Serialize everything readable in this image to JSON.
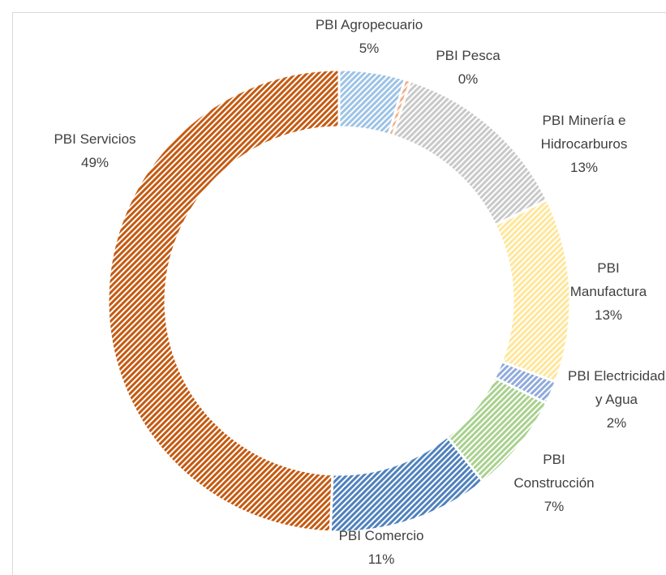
{
  "chart_data": {
    "type": "donut",
    "categories": [
      "PBI Agropecuario",
      "PBI Pesca",
      "PBI Minería e Hidrocarburos",
      "PBI Manufactura",
      "PBI Electricidad y Agua",
      "PBI Construcción",
      "PBI Comercio",
      "PBI Servicios"
    ],
    "values": [
      4.6,
      0.4,
      12.8,
      12.9,
      1.6,
      7.0,
      11.3,
      49.4
    ],
    "value_labels": [
      "5%",
      "0%",
      "13%",
      "13%",
      "2%",
      "7%",
      "11%",
      "49%"
    ],
    "colors": [
      "#9dc3e6",
      "#f4b183",
      "#c9c9c9",
      "#ffe699",
      "#8faadc",
      "#a9d18e",
      "#4f81bd",
      "#c55a11"
    ]
  }
}
